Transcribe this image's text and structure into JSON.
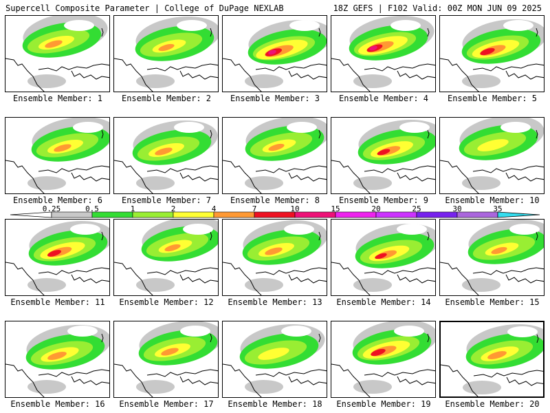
{
  "header": {
    "title": "Supercell Composite Parameter | College of DuPage NEXLAB",
    "run_info": "18Z GEFS | F102 Valid: 00Z MON JUN 09 2025"
  },
  "members": [
    {
      "label": "Ensemble Member: 1",
      "intensity": 0.55
    },
    {
      "label": "Ensemble Member: 2",
      "intensity": 0.5
    },
    {
      "label": "Ensemble Member: 3",
      "intensity": 0.9
    },
    {
      "label": "Ensemble Member: 4",
      "intensity": 0.85
    },
    {
      "label": "Ensemble Member: 5",
      "intensity": 0.8
    },
    {
      "label": "Ensemble Member: 6",
      "intensity": 0.55
    },
    {
      "label": "Ensemble Member: 7",
      "intensity": 0.55
    },
    {
      "label": "Ensemble Member: 8",
      "intensity": 0.5
    },
    {
      "label": "Ensemble Member: 9",
      "intensity": 0.7
    },
    {
      "label": "Ensemble Member: 10",
      "intensity": 0.45
    },
    {
      "label": "Ensemble Member: 11",
      "intensity": 0.75
    },
    {
      "label": "Ensemble Member: 12",
      "intensity": 0.5
    },
    {
      "label": "Ensemble Member: 13",
      "intensity": 0.55
    },
    {
      "label": "Ensemble Member: 14",
      "intensity": 0.65
    },
    {
      "label": "Ensemble Member: 15",
      "intensity": 0.5
    },
    {
      "label": "Ensemble Member: 16",
      "intensity": 0.6
    },
    {
      "label": "Ensemble Member: 17",
      "intensity": 0.55
    },
    {
      "label": "Ensemble Member: 18",
      "intensity": 0.45
    },
    {
      "label": "Ensemble Member: 19",
      "intensity": 0.8
    },
    {
      "label": "Ensemble Member: 20",
      "intensity": 0.6,
      "selected": true
    }
  ],
  "colorbar": {
    "levels": [
      "0.25",
      "0.5",
      "1",
      "2",
      "4",
      "7",
      "10",
      "15",
      "20",
      "25",
      "30",
      "35"
    ],
    "colors": [
      "#ffffff",
      "#c8c8c8",
      "#33dd33",
      "#99ee33",
      "#ffff33",
      "#ff9933",
      "#ee1122",
      "#ee1177",
      "#ee22ee",
      "#cc33ff",
      "#7722ee",
      "#aa66dd",
      "#33ddee"
    ]
  },
  "palette": {
    "gray": "#c8c8c8",
    "green": "#33dd33",
    "lime": "#99ee33",
    "yellow": "#ffff33",
    "orange": "#ff9933",
    "red": "#ee1122",
    "magenta": "#ee1177"
  }
}
